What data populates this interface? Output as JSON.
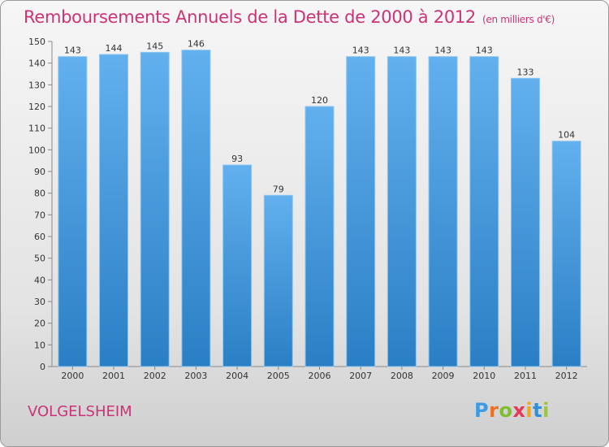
{
  "chart_data": {
    "type": "bar",
    "title": "Remboursements Annuels de la Dette de 2000 à 2012",
    "unit_label": "(en milliers d'€)",
    "categories": [
      "2000",
      "2001",
      "2002",
      "2003",
      "2004",
      "2005",
      "2006",
      "2007",
      "2008",
      "2009",
      "2010",
      "2011",
      "2012"
    ],
    "values": [
      143,
      144,
      145,
      146,
      93,
      79,
      120,
      143,
      143,
      143,
      143,
      133,
      104
    ],
    "ylim": [
      0,
      150
    ],
    "yticks": [
      0,
      10,
      20,
      30,
      40,
      50,
      60,
      70,
      80,
      90,
      100,
      110,
      120,
      130,
      140,
      150
    ],
    "grid": false,
    "bar_color": "#5aa8e6"
  },
  "footer": {
    "town": "VOLGELSHEIM",
    "logo_text": "Proxiti"
  }
}
